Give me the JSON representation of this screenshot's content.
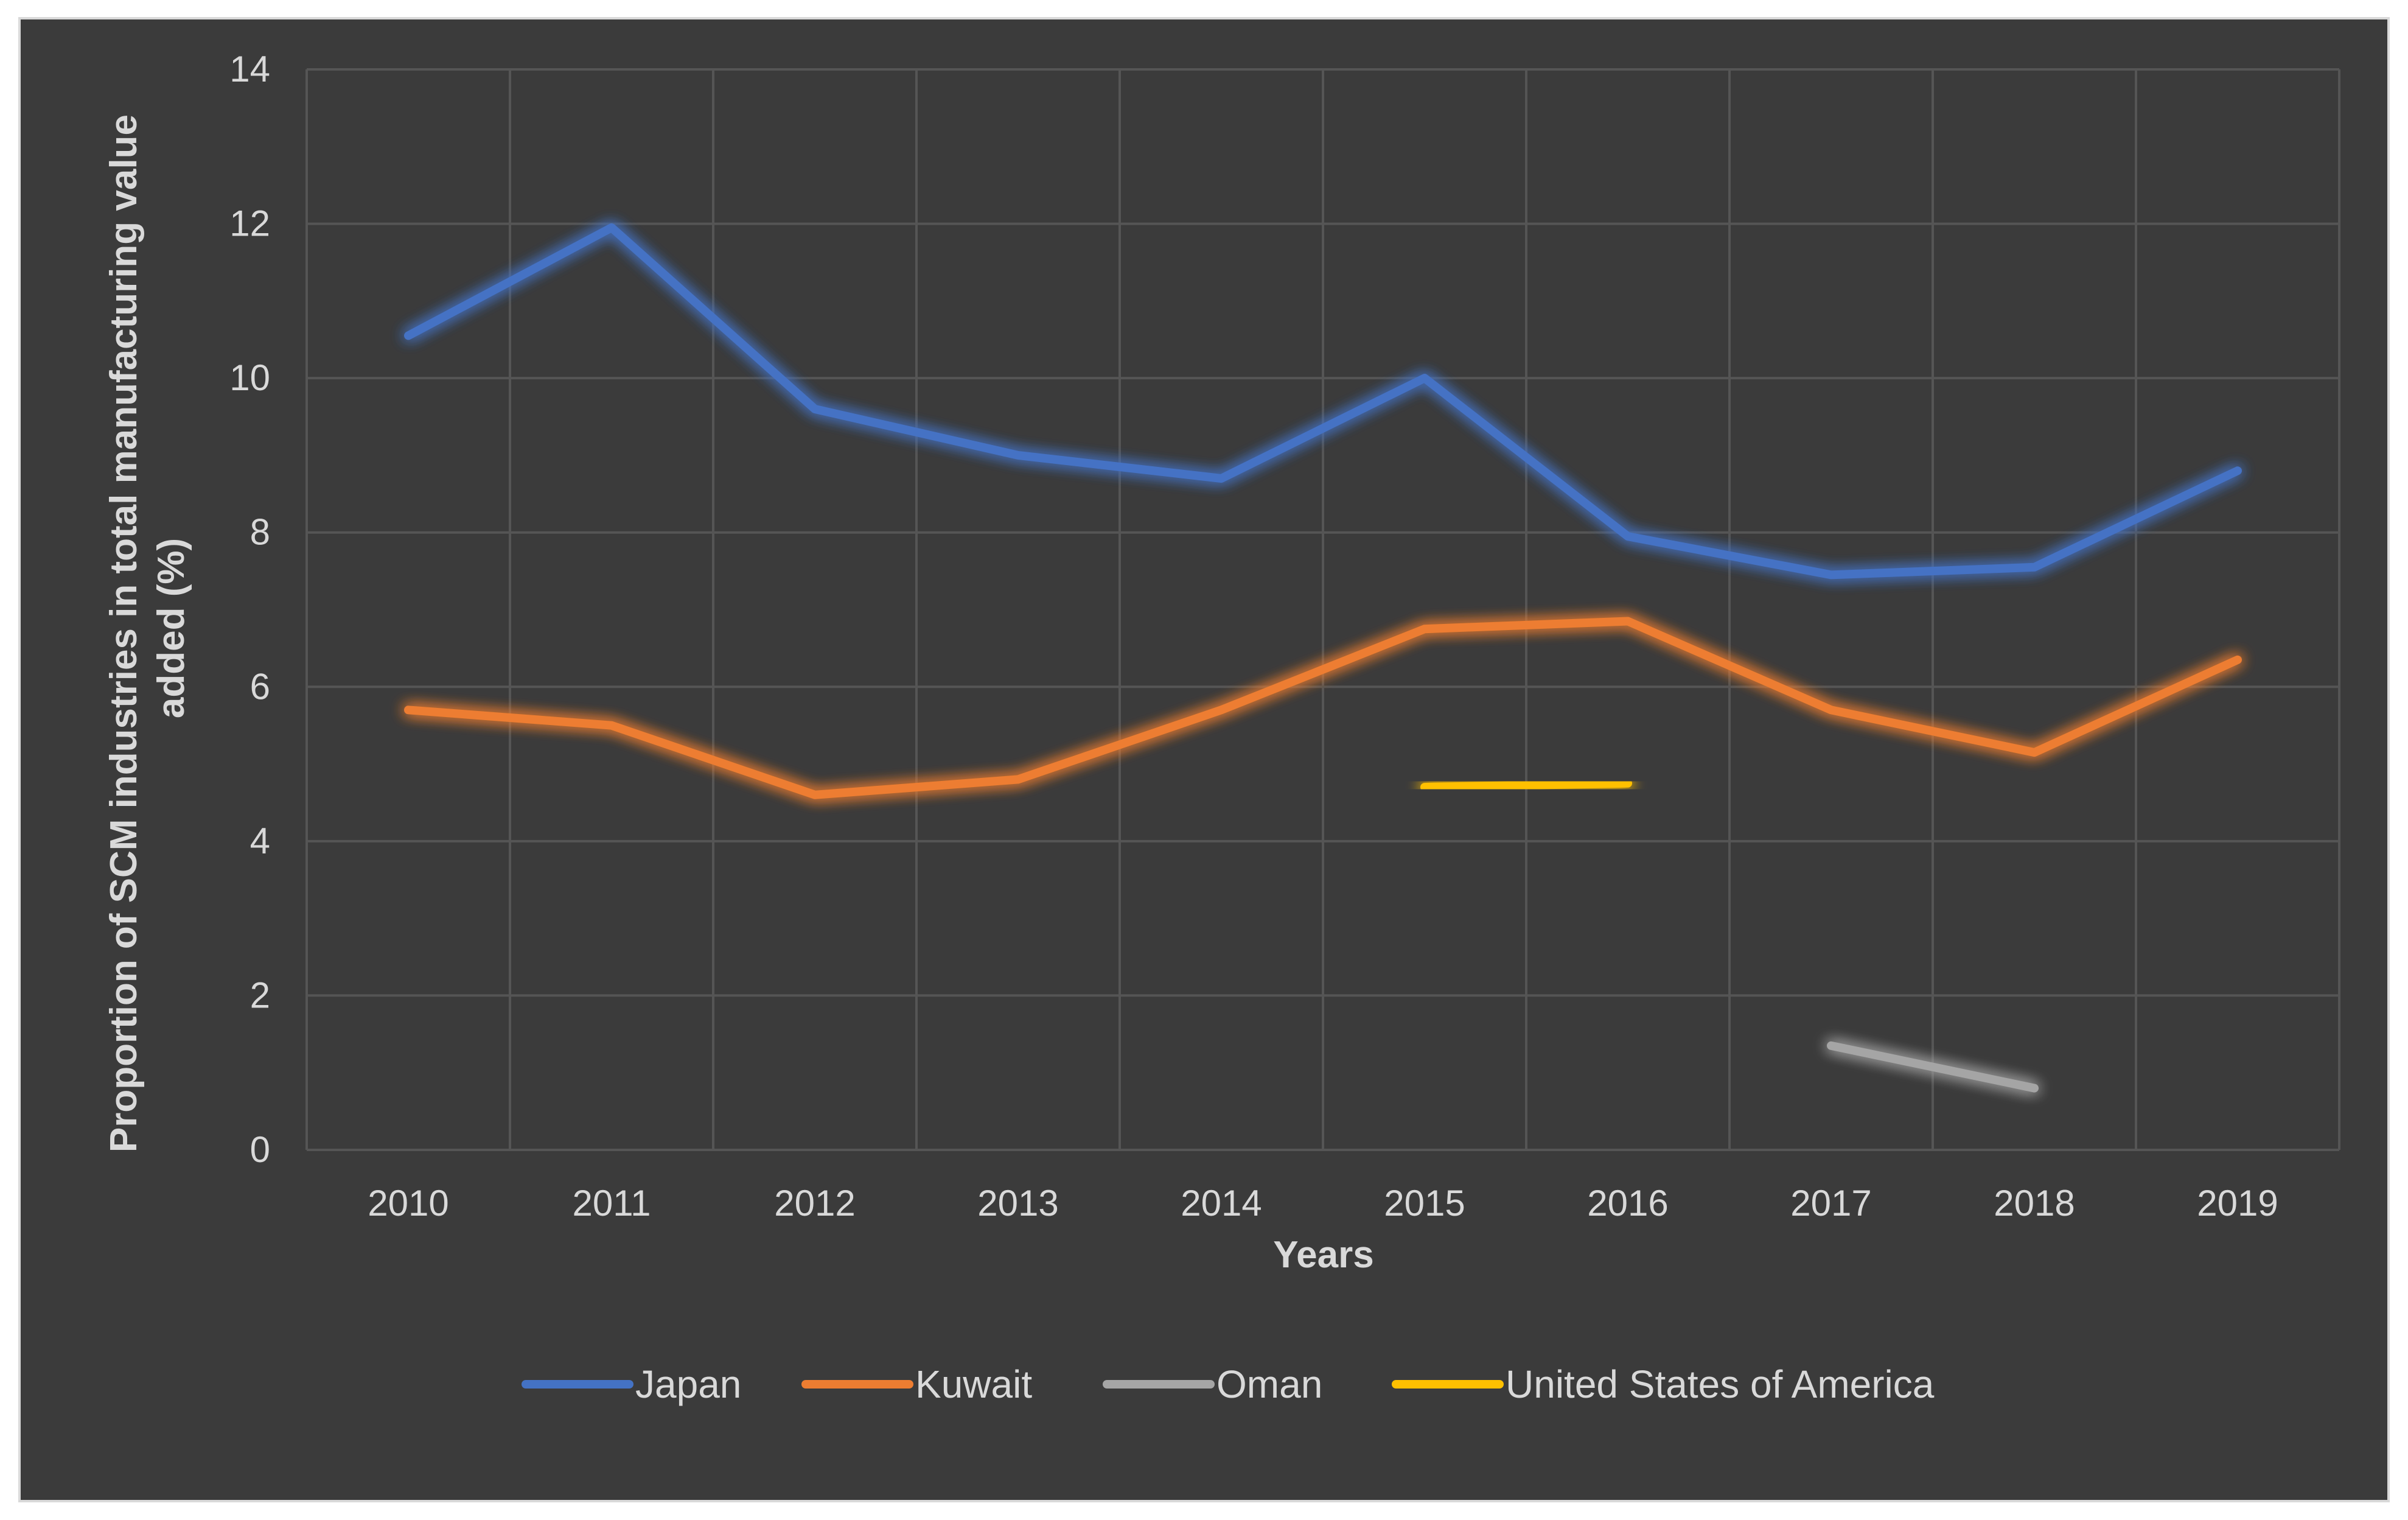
{
  "chart_data": {
    "type": "line",
    "title": "",
    "xlabel": "Years",
    "ylabel_lines": [
      "Proportion of SCM industries in total manufacturing value",
      "added (%)"
    ],
    "categories": [
      "2010",
      "2011",
      "2012",
      "2013",
      "2014",
      "2015",
      "2016",
      "2017",
      "2018",
      "2019"
    ],
    "ylim": [
      0,
      14
    ],
    "yticks": [
      0,
      2,
      4,
      6,
      8,
      10,
      12,
      14
    ],
    "grid": true,
    "legend_position": "bottom",
    "series": [
      {
        "name": "Japan",
        "color": "#4472c4",
        "values": [
          10.55,
          11.95,
          9.6,
          9.0,
          8.7,
          10.0,
          7.95,
          7.45,
          7.55,
          8.8
        ]
      },
      {
        "name": "Kuwait",
        "color": "#ed7d31",
        "values": [
          5.7,
          5.5,
          4.6,
          4.8,
          5.7,
          6.75,
          6.85,
          5.7,
          5.15,
          6.35
        ]
      },
      {
        "name": "Oman",
        "color": "#a5a5a5",
        "values": [
          null,
          null,
          null,
          null,
          null,
          null,
          null,
          1.35,
          0.8,
          null
        ]
      },
      {
        "name": "United States of America",
        "color": "#ffc000",
        "values": [
          null,
          null,
          null,
          null,
          null,
          4.7,
          4.75,
          null,
          null,
          null
        ]
      }
    ]
  }
}
